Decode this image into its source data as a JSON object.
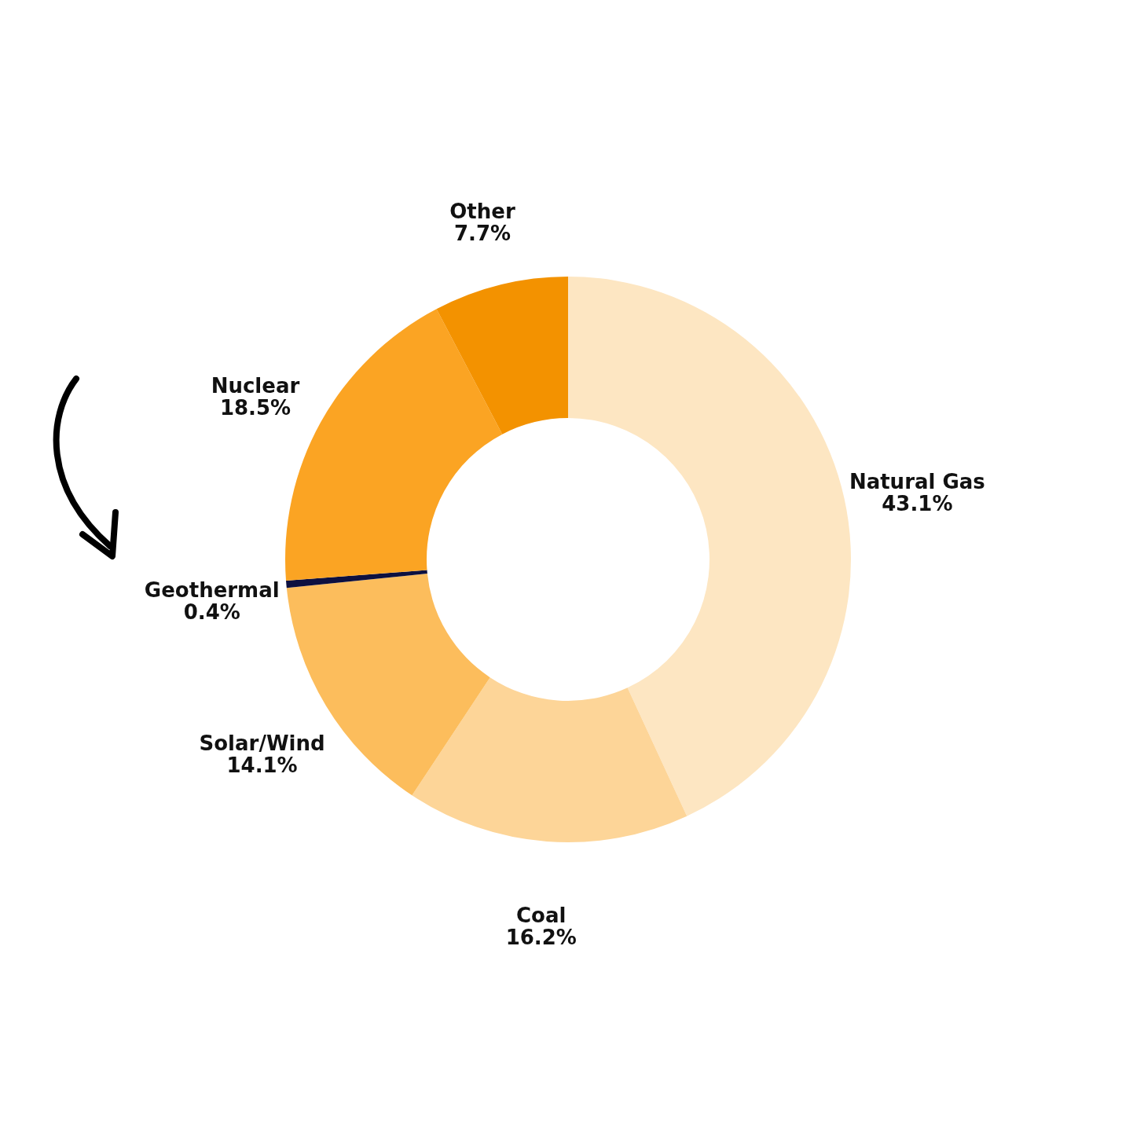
{
  "chart_data": {
    "type": "donut",
    "categories": [
      "Natural Gas",
      "Coal",
      "Solar/Wind",
      "Geothermal",
      "Nuclear",
      "Other"
    ],
    "values": [
      43.1,
      16.2,
      14.1,
      0.4,
      18.5,
      7.7
    ],
    "value_labels": [
      "43.1%",
      "16.2%",
      "14.1%",
      "0.4%",
      "18.5%",
      "7.7%"
    ],
    "colors": [
      "#fde6c2",
      "#fdd598",
      "#fcbd5c",
      "#0d1040",
      "#fba423",
      "#f39200"
    ]
  }
}
